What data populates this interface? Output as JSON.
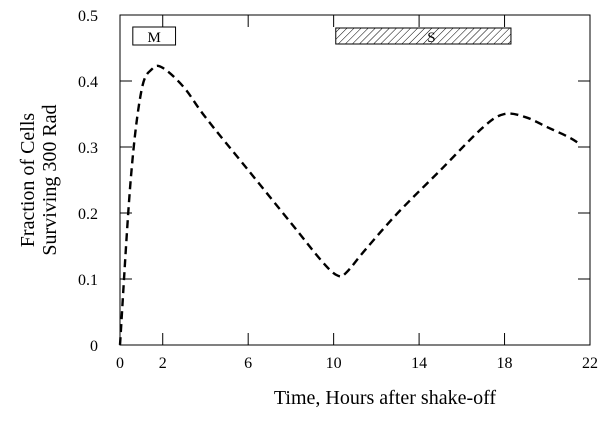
{
  "chart_data": {
    "type": "line",
    "xlabel": "Time, Hours after shake-off",
    "ylabel_lines": [
      "Fraction of Cells",
      "Surviving 300 Rad"
    ],
    "xlim": [
      0,
      22
    ],
    "ylim": [
      0,
      0.5
    ],
    "x_ticks": [
      0,
      2,
      6,
      10,
      14,
      18,
      22
    ],
    "y_ticks": [
      0,
      0.1,
      0.2,
      0.3,
      0.4,
      0.5
    ],
    "y_tick_labels": [
      "0",
      "0.1",
      "0.2",
      "0.3",
      "0.4",
      "0.5"
    ],
    "series": [
      {
        "line_style": "dashed",
        "color": "#000000",
        "x": [
          0,
          0.5,
          1.0,
          1.5,
          2.0,
          3.0,
          4.0,
          6.0,
          8.0,
          9.5,
          10.2,
          10.6,
          11.5,
          13.0,
          15.0,
          17.0,
          18.0,
          19.0,
          20.0,
          21.0,
          21.5
        ],
        "y": [
          0.0,
          0.25,
          0.385,
          0.418,
          0.42,
          0.39,
          0.345,
          0.265,
          0.185,
          0.125,
          0.105,
          0.11,
          0.145,
          0.2,
          0.265,
          0.33,
          0.35,
          0.345,
          0.33,
          0.315,
          0.305
        ]
      }
    ],
    "annotations": [
      {
        "label": "M",
        "type": "boxed-label",
        "x_range": [
          0.6,
          2.6
        ]
      },
      {
        "label": "S",
        "type": "hatched-bar",
        "x_range": [
          10.1,
          18.3
        ]
      }
    ],
    "grid": false,
    "legend": "none"
  }
}
